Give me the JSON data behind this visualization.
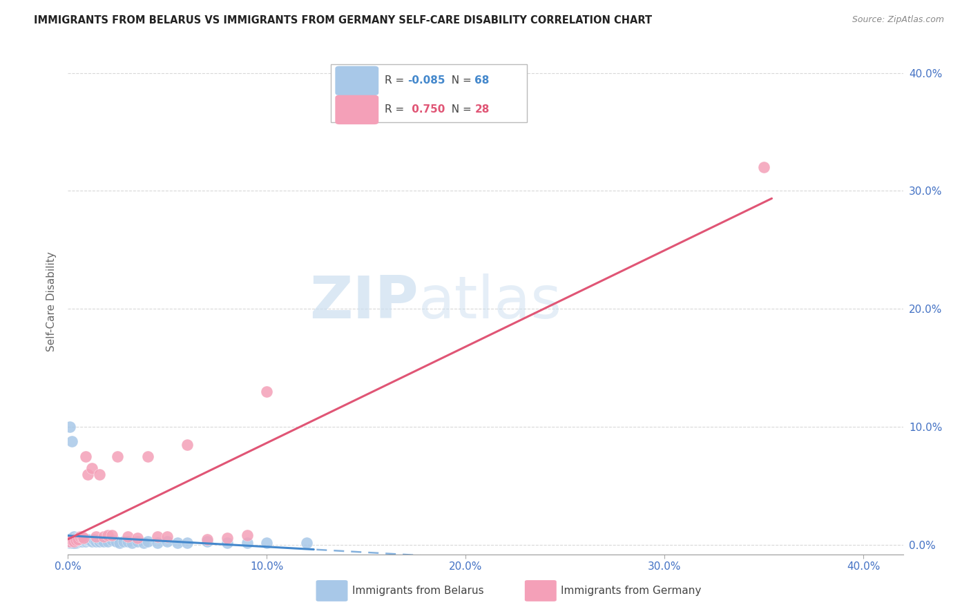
{
  "title": "IMMIGRANTS FROM BELARUS VS IMMIGRANTS FROM GERMANY SELF-CARE DISABILITY CORRELATION CHART",
  "source": "Source: ZipAtlas.com",
  "ylabel": "Self-Care Disability",
  "legend1_r": "-0.085",
  "legend1_n": "68",
  "legend2_r": "0.750",
  "legend2_n": "28",
  "belarus_color": "#a8c8e8",
  "germany_color": "#f4a0b8",
  "belarus_line_color": "#4488cc",
  "germany_line_color": "#e05575",
  "tick_color": "#4472c4",
  "grid_color": "#d8d8d8",
  "watermark_color": "#ccdff0",
  "xlim": [
    0.0,
    0.42
  ],
  "ylim": [
    -0.008,
    0.42
  ],
  "xticks": [
    0.0,
    0.1,
    0.2,
    0.3,
    0.4
  ],
  "yticks": [
    0.0,
    0.1,
    0.2,
    0.3,
    0.4
  ],
  "belarus_x": [
    0.001,
    0.001,
    0.001,
    0.002,
    0.002,
    0.002,
    0.002,
    0.002,
    0.002,
    0.003,
    0.003,
    0.003,
    0.003,
    0.003,
    0.003,
    0.003,
    0.004,
    0.004,
    0.004,
    0.004,
    0.004,
    0.005,
    0.005,
    0.005,
    0.005,
    0.006,
    0.006,
    0.006,
    0.007,
    0.007,
    0.007,
    0.008,
    0.008,
    0.009,
    0.009,
    0.01,
    0.01,
    0.011,
    0.012,
    0.013,
    0.013,
    0.014,
    0.015,
    0.016,
    0.017,
    0.018,
    0.02,
    0.022,
    0.024,
    0.026,
    0.028,
    0.03,
    0.032,
    0.035,
    0.038,
    0.04,
    0.045,
    0.05,
    0.055,
    0.06,
    0.07,
    0.08,
    0.09,
    0.1,
    0.12,
    0.001,
    0.002,
    0.003
  ],
  "belarus_y": [
    0.002,
    0.003,
    0.004,
    0.002,
    0.003,
    0.004,
    0.005,
    0.006,
    0.002,
    0.003,
    0.004,
    0.005,
    0.006,
    0.007,
    0.002,
    0.003,
    0.003,
    0.004,
    0.005,
    0.006,
    0.002,
    0.003,
    0.004,
    0.005,
    0.006,
    0.003,
    0.004,
    0.005,
    0.003,
    0.004,
    0.005,
    0.004,
    0.005,
    0.003,
    0.004,
    0.004,
    0.005,
    0.004,
    0.003,
    0.004,
    0.005,
    0.003,
    0.004,
    0.003,
    0.004,
    0.003,
    0.003,
    0.004,
    0.003,
    0.002,
    0.003,
    0.003,
    0.002,
    0.003,
    0.002,
    0.003,
    0.002,
    0.003,
    0.002,
    0.002,
    0.003,
    0.002,
    0.002,
    0.002,
    0.002,
    0.1,
    0.088,
    0.002
  ],
  "germany_x": [
    0.001,
    0.002,
    0.003,
    0.004,
    0.005,
    0.006,
    0.007,
    0.008,
    0.009,
    0.01,
    0.012,
    0.014,
    0.016,
    0.018,
    0.02,
    0.022,
    0.025,
    0.03,
    0.035,
    0.04,
    0.045,
    0.05,
    0.06,
    0.07,
    0.08,
    0.09,
    0.1,
    0.35
  ],
  "germany_y": [
    0.003,
    0.004,
    0.003,
    0.004,
    0.005,
    0.007,
    0.007,
    0.006,
    0.075,
    0.06,
    0.065,
    0.007,
    0.06,
    0.007,
    0.008,
    0.008,
    0.075,
    0.007,
    0.006,
    0.075,
    0.007,
    0.007,
    0.085,
    0.005,
    0.006,
    0.008,
    0.13,
    0.32
  ]
}
